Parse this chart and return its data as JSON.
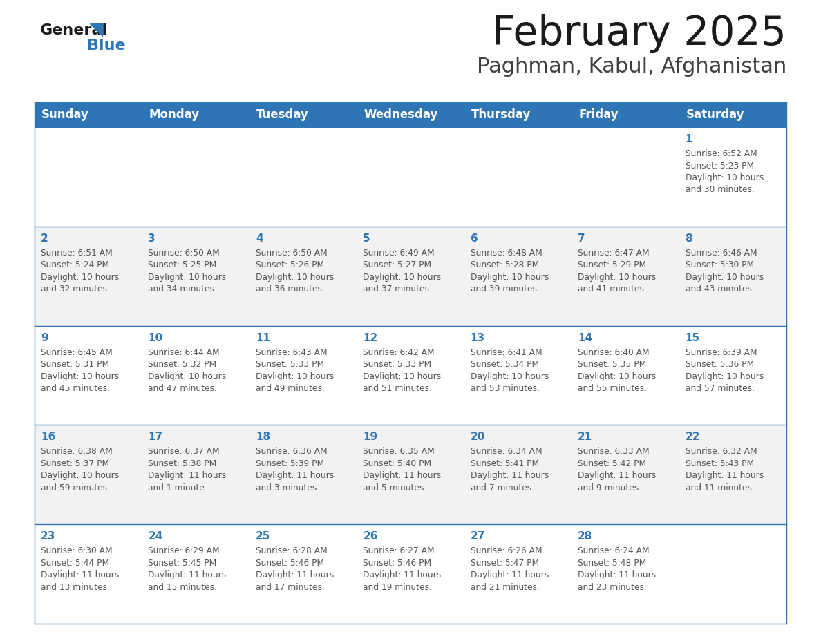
{
  "title": "February 2025",
  "subtitle": "Paghman, Kabul, Afghanistan",
  "header_color": "#2E75B6",
  "header_text_color": "#FFFFFF",
  "days_of_week": [
    "Sunday",
    "Monday",
    "Tuesday",
    "Wednesday",
    "Thursday",
    "Friday",
    "Saturday"
  ],
  "bg_color": "#FFFFFF",
  "cell_bg_even": "#F2F2F2",
  "cell_bg_odd": "#FFFFFF",
  "border_color": "#2E75B6",
  "day_num_color": "#2E75B6",
  "info_text_color": "#555555",
  "calendar": [
    [
      {
        "day": 0,
        "info": ""
      },
      {
        "day": 0,
        "info": ""
      },
      {
        "day": 0,
        "info": ""
      },
      {
        "day": 0,
        "info": ""
      },
      {
        "day": 0,
        "info": ""
      },
      {
        "day": 0,
        "info": ""
      },
      {
        "day": 1,
        "info": "Sunrise: 6:52 AM\nSunset: 5:23 PM\nDaylight: 10 hours\nand 30 minutes."
      }
    ],
    [
      {
        "day": 2,
        "info": "Sunrise: 6:51 AM\nSunset: 5:24 PM\nDaylight: 10 hours\nand 32 minutes."
      },
      {
        "day": 3,
        "info": "Sunrise: 6:50 AM\nSunset: 5:25 PM\nDaylight: 10 hours\nand 34 minutes."
      },
      {
        "day": 4,
        "info": "Sunrise: 6:50 AM\nSunset: 5:26 PM\nDaylight: 10 hours\nand 36 minutes."
      },
      {
        "day": 5,
        "info": "Sunrise: 6:49 AM\nSunset: 5:27 PM\nDaylight: 10 hours\nand 37 minutes."
      },
      {
        "day": 6,
        "info": "Sunrise: 6:48 AM\nSunset: 5:28 PM\nDaylight: 10 hours\nand 39 minutes."
      },
      {
        "day": 7,
        "info": "Sunrise: 6:47 AM\nSunset: 5:29 PM\nDaylight: 10 hours\nand 41 minutes."
      },
      {
        "day": 8,
        "info": "Sunrise: 6:46 AM\nSunset: 5:30 PM\nDaylight: 10 hours\nand 43 minutes."
      }
    ],
    [
      {
        "day": 9,
        "info": "Sunrise: 6:45 AM\nSunset: 5:31 PM\nDaylight: 10 hours\nand 45 minutes."
      },
      {
        "day": 10,
        "info": "Sunrise: 6:44 AM\nSunset: 5:32 PM\nDaylight: 10 hours\nand 47 minutes."
      },
      {
        "day": 11,
        "info": "Sunrise: 6:43 AM\nSunset: 5:33 PM\nDaylight: 10 hours\nand 49 minutes."
      },
      {
        "day": 12,
        "info": "Sunrise: 6:42 AM\nSunset: 5:33 PM\nDaylight: 10 hours\nand 51 minutes."
      },
      {
        "day": 13,
        "info": "Sunrise: 6:41 AM\nSunset: 5:34 PM\nDaylight: 10 hours\nand 53 minutes."
      },
      {
        "day": 14,
        "info": "Sunrise: 6:40 AM\nSunset: 5:35 PM\nDaylight: 10 hours\nand 55 minutes."
      },
      {
        "day": 15,
        "info": "Sunrise: 6:39 AM\nSunset: 5:36 PM\nDaylight: 10 hours\nand 57 minutes."
      }
    ],
    [
      {
        "day": 16,
        "info": "Sunrise: 6:38 AM\nSunset: 5:37 PM\nDaylight: 10 hours\nand 59 minutes."
      },
      {
        "day": 17,
        "info": "Sunrise: 6:37 AM\nSunset: 5:38 PM\nDaylight: 11 hours\nand 1 minute."
      },
      {
        "day": 18,
        "info": "Sunrise: 6:36 AM\nSunset: 5:39 PM\nDaylight: 11 hours\nand 3 minutes."
      },
      {
        "day": 19,
        "info": "Sunrise: 6:35 AM\nSunset: 5:40 PM\nDaylight: 11 hours\nand 5 minutes."
      },
      {
        "day": 20,
        "info": "Sunrise: 6:34 AM\nSunset: 5:41 PM\nDaylight: 11 hours\nand 7 minutes."
      },
      {
        "day": 21,
        "info": "Sunrise: 6:33 AM\nSunset: 5:42 PM\nDaylight: 11 hours\nand 9 minutes."
      },
      {
        "day": 22,
        "info": "Sunrise: 6:32 AM\nSunset: 5:43 PM\nDaylight: 11 hours\nand 11 minutes."
      }
    ],
    [
      {
        "day": 23,
        "info": "Sunrise: 6:30 AM\nSunset: 5:44 PM\nDaylight: 11 hours\nand 13 minutes."
      },
      {
        "day": 24,
        "info": "Sunrise: 6:29 AM\nSunset: 5:45 PM\nDaylight: 11 hours\nand 15 minutes."
      },
      {
        "day": 25,
        "info": "Sunrise: 6:28 AM\nSunset: 5:46 PM\nDaylight: 11 hours\nand 17 minutes."
      },
      {
        "day": 26,
        "info": "Sunrise: 6:27 AM\nSunset: 5:46 PM\nDaylight: 11 hours\nand 19 minutes."
      },
      {
        "day": 27,
        "info": "Sunrise: 6:26 AM\nSunset: 5:47 PM\nDaylight: 11 hours\nand 21 minutes."
      },
      {
        "day": 28,
        "info": "Sunrise: 6:24 AM\nSunset: 5:48 PM\nDaylight: 11 hours\nand 23 minutes."
      },
      {
        "day": 0,
        "info": ""
      }
    ]
  ]
}
